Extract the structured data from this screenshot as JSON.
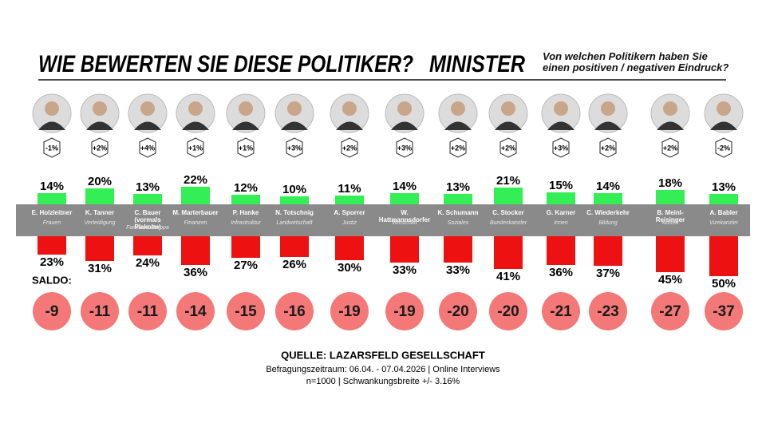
{
  "chart_data": {
    "type": "diverging-bar",
    "title": "WIE BEWERTEN SIE DIESE POLITIKER?",
    "title_tag": "MINISTER",
    "subtitle": "Von welchen Politikern haben Sie einen positiven / negativen Eindruck?",
    "categories": [
      "E. Holzleitner",
      "K. Tanner",
      "C. Bauer (vormals Plakolm)",
      "M. Marterbauer",
      "P. Hanke",
      "N. Totschnig",
      "A. Sporrer",
      "W. Hattmannsdorfer",
      "K. Schumann",
      "C. Stocker",
      "G. Karner",
      "C. Wiederkehr",
      "B. Meinl-Reisinger",
      "A. Babler"
    ],
    "roles": [
      "Frauen",
      "Verteidigung",
      "Familie & Europa",
      "Finanzen",
      "Infrastruktur",
      "Landwirtschaft",
      "Justiz",
      "Wirtschaft",
      "Soziales",
      "Bundeskanzler",
      "Innen",
      "Bildung",
      "Außen",
      "Vizekanzler"
    ],
    "changes": [
      "-1%",
      "+2%",
      "+4%",
      "+1%",
      "+1%",
      "+3%",
      "+2%",
      "+3%",
      "+2%",
      "+2%",
      "+3%",
      "+2%",
      "+2%",
      "-2%"
    ],
    "positive": {
      "color": "#33ee55",
      "values": [
        14,
        20,
        13,
        22,
        12,
        10,
        11,
        14,
        13,
        21,
        15,
        14,
        18,
        13
      ],
      "value_labels": [
        "14%",
        "20%",
        "13%",
        "22%",
        "12%",
        "10%",
        "11%",
        "14%",
        "13%",
        "21%",
        "15%",
        "14%",
        "18%",
        "13%"
      ]
    },
    "negative": {
      "color": "#ee1111",
      "values": [
        23,
        31,
        24,
        36,
        27,
        26,
        30,
        33,
        33,
        41,
        36,
        37,
        45,
        50
      ],
      "value_labels": [
        "23%",
        "31%",
        "24%",
        "36%",
        "27%",
        "26%",
        "30%",
        "33%",
        "33%",
        "41%",
        "36%",
        "37%",
        "45%",
        "50%"
      ]
    },
    "saldo": {
      "label": "SALDO:",
      "color": "#f47878",
      "values": [
        -9,
        -11,
        -11,
        -14,
        -15,
        -16,
        -19,
        -19,
        -20,
        -20,
        -21,
        -23,
        -27,
        -37
      ]
    },
    "source": "QUELLE: LAZARSFELD GESELLSCHAFT",
    "footnotes": [
      "Befragungszeitraum: 06.04. - 07.04.2026 | Online Interviews",
      "n=1000  |  Schwankungsbreite +/- 3.16%"
    ]
  }
}
